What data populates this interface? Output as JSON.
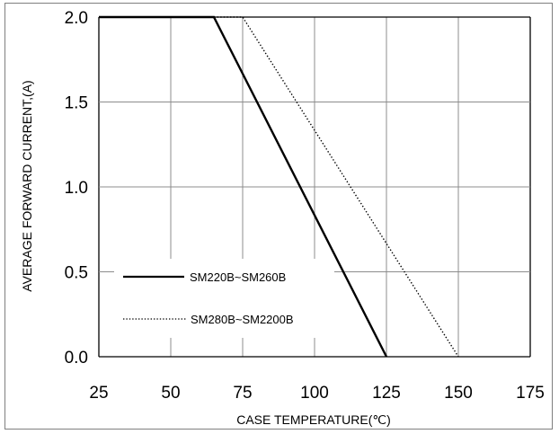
{
  "chart_data": {
    "type": "line",
    "title": "",
    "xlabel": "CASE  TEMPERATURE(℃)",
    "ylabel": "AVERAGE FORWARD CURRENT,(A)",
    "xlim": [
      25,
      175
    ],
    "ylim": [
      0.0,
      2.0
    ],
    "x_ticks": [
      "25",
      "50",
      "75",
      "100",
      "125",
      "150",
      "175"
    ],
    "y_ticks": [
      "0.0",
      "0.5",
      "1.0",
      "1.5",
      "2.0"
    ],
    "grid": true,
    "legend_position": "lower-left",
    "series": [
      {
        "name": "SM220B~SM260B",
        "style": "solid",
        "color": "#000000",
        "x": [
          25,
          65,
          125
        ],
        "y": [
          2.0,
          2.0,
          0.0
        ]
      },
      {
        "name": "SM280B~SM2200B",
        "style": "dotted",
        "color": "#000000",
        "x": [
          65,
          75,
          150
        ],
        "y": [
          2.0,
          2.0,
          0.0
        ]
      }
    ]
  }
}
